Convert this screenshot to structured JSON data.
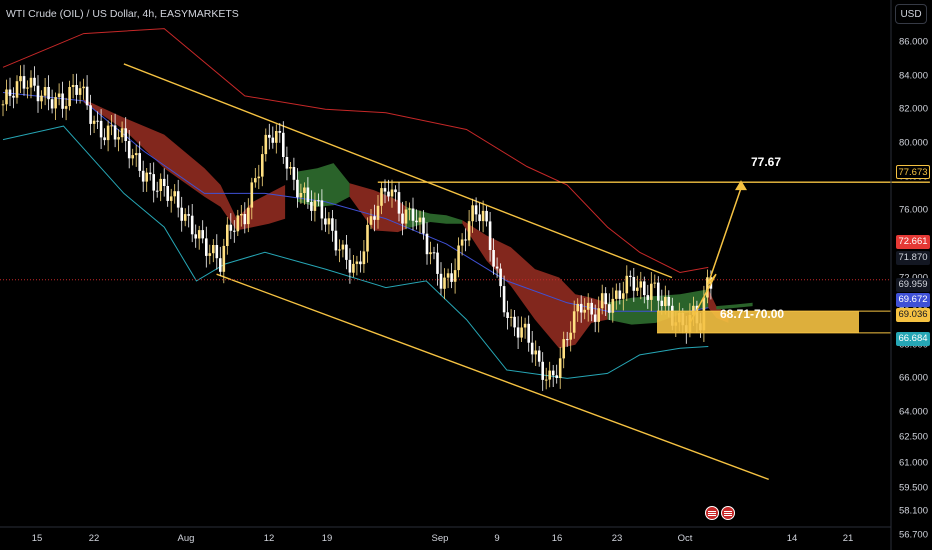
{
  "header": {
    "title": "WTI Crude (OIL) / US Dollar, 4h, EASYMARKETS",
    "currency_button": "USD"
  },
  "colors": {
    "background": "#000000",
    "candle_up": "#ffe082",
    "candle_down": "#ffffff",
    "channel": "#f5c242",
    "upper_band": "#c62828",
    "lower_band": "#26a6b5",
    "ma": "#3f51d6",
    "cloud_bear": "#8d2a1f",
    "cloud_bull": "#2e6b2e",
    "zone": "#f5c242"
  },
  "annotations": {
    "target_label": "77.67",
    "zone_label": "68.71-70.00"
  },
  "icons": {
    "events": [
      "us-flag-icon",
      "us-flag-icon"
    ]
  },
  "chart_data": {
    "type": "candlestick",
    "title": "WTI Crude (OIL) / US Dollar, 4h, EASYMARKETS",
    "xlabel": "",
    "ylabel": "",
    "ylim": [
      55.8,
      88.5
    ],
    "y_ticks": [
      "86.000",
      "84.000",
      "82.000",
      "80.000",
      "78.000",
      "76.000",
      "74.000",
      "72.000",
      "70.000",
      "68.000",
      "66.000",
      "64.000",
      "62.500",
      "61.000",
      "59.500",
      "58.100",
      "56.700"
    ],
    "x_ticks": [
      "15",
      "22",
      "Aug",
      "12",
      "19",
      "Sep",
      "9",
      "16",
      "23",
      "Oct",
      "14",
      "21"
    ],
    "close_path": [
      [
        0,
        82.3
      ],
      [
        6,
        83.6
      ],
      [
        10,
        83.2
      ],
      [
        15,
        82.0
      ],
      [
        19,
        83.5
      ],
      [
        24,
        80.8
      ],
      [
        29,
        80.2
      ],
      [
        34,
        78.8
      ],
      [
        38,
        77.5
      ],
      [
        43,
        76.2
      ],
      [
        48,
        75.0
      ],
      [
        51,
        73.6
      ],
      [
        54,
        72.5
      ],
      [
        56,
        74.8
      ],
      [
        60,
        76.0
      ],
      [
        62,
        77.6
      ],
      [
        66,
        80.2
      ],
      [
        69,
        80.0
      ],
      [
        71,
        78.4
      ],
      [
        76,
        76.6
      ],
      [
        79,
        75.6
      ],
      [
        82,
        74.3
      ],
      [
        85,
        73.5
      ],
      [
        88,
        72.6
      ],
      [
        90,
        74.2
      ],
      [
        93,
        76.1
      ],
      [
        96,
        77.6
      ],
      [
        99,
        76.0
      ],
      [
        102,
        75.8
      ],
      [
        105,
        73.7
      ],
      [
        109,
        71.8
      ],
      [
        111,
        72.3
      ],
      [
        113,
        73.6
      ],
      [
        116,
        75.4
      ],
      [
        119,
        75.6
      ],
      [
        121,
        73.9
      ],
      [
        123,
        72.0
      ],
      [
        126,
        69.3
      ],
      [
        130,
        68.3
      ],
      [
        133,
        66.6
      ],
      [
        136,
        66.2
      ],
      [
        138,
        67.2
      ],
      [
        141,
        69.1
      ],
      [
        144,
        70.2
      ],
      [
        146,
        69.6
      ],
      [
        149,
        71.0
      ],
      [
        151,
        70.6
      ],
      [
        154,
        71.2
      ],
      [
        156,
        71.5
      ],
      [
        159,
        71.0
      ],
      [
        161,
        71.8
      ],
      [
        164,
        70.8
      ],
      [
        166,
        69.5
      ],
      [
        169,
        68.7
      ],
      [
        171,
        69.8
      ],
      [
        173,
        69.5
      ],
      [
        175,
        72.3
      ],
      [
        176,
        72.0
      ]
    ],
    "series": [
      {
        "name": "",
        "style": "upper-band",
        "values": [
          [
            0,
            84.5
          ],
          [
            20,
            86.5
          ],
          [
            40,
            86.8
          ],
          [
            60,
            82.8
          ],
          [
            80,
            82.0
          ],
          [
            95,
            81.8
          ],
          [
            115,
            80.8
          ],
          [
            130,
            78.6
          ],
          [
            140,
            77.5
          ],
          [
            150,
            75.0
          ],
          [
            158,
            73.5
          ],
          [
            168,
            72.3
          ],
          [
            175,
            72.6
          ]
        ]
      },
      {
        "name": "",
        "style": "lower-band",
        "values": [
          [
            0,
            80.2
          ],
          [
            15,
            81.0
          ],
          [
            30,
            77.0
          ],
          [
            40,
            75.0
          ],
          [
            48,
            71.8
          ],
          [
            55,
            72.8
          ],
          [
            65,
            73.5
          ],
          [
            80,
            72.5
          ],
          [
            95,
            71.4
          ],
          [
            105,
            71.8
          ],
          [
            115,
            69.5
          ],
          [
            125,
            66.5
          ],
          [
            140,
            66.0
          ],
          [
            150,
            66.3
          ],
          [
            158,
            67.4
          ],
          [
            168,
            67.8
          ],
          [
            175,
            67.9
          ]
        ]
      },
      {
        "name": "",
        "style": "moving-average",
        "values": [
          [
            0,
            83.0
          ],
          [
            20,
            82.5
          ],
          [
            35,
            79.5
          ],
          [
            50,
            77.0
          ],
          [
            65,
            77.0
          ],
          [
            80,
            76.5
          ],
          [
            95,
            75.5
          ],
          [
            110,
            74.0
          ],
          [
            125,
            71.8
          ],
          [
            140,
            70.5
          ],
          [
            150,
            70.0
          ],
          [
            160,
            70.0
          ],
          [
            170,
            70.0
          ],
          [
            175,
            70.2
          ]
        ]
      }
    ],
    "clouds": [
      {
        "type": "bearish",
        "top": [
          [
            20,
            82.6
          ],
          [
            30,
            81.5
          ],
          [
            40,
            80.5
          ],
          [
            50,
            78.5
          ],
          [
            54,
            77.5
          ],
          [
            58,
            75.5
          ],
          [
            62,
            76.5
          ],
          [
            66,
            77.0
          ],
          [
            70,
            77.5
          ]
        ],
        "bottom": [
          [
            20,
            82.4
          ],
          [
            30,
            80.8
          ],
          [
            40,
            78.5
          ],
          [
            50,
            76.8
          ],
          [
            54,
            76.2
          ],
          [
            58,
            74.8
          ],
          [
            62,
            75.0
          ],
          [
            66,
            75.2
          ],
          [
            70,
            75.5
          ]
        ]
      },
      {
        "type": "bullish",
        "top": [
          [
            73,
            78.3
          ],
          [
            78,
            78.5
          ],
          [
            82,
            78.8
          ],
          [
            86,
            77.6
          ]
        ],
        "bottom": [
          [
            73,
            76.5
          ],
          [
            78,
            76.2
          ],
          [
            82,
            76.3
          ],
          [
            86,
            76.8
          ]
        ]
      },
      {
        "type": "bearish",
        "top": [
          [
            86,
            77.6
          ],
          [
            92,
            77.2
          ],
          [
            98,
            76.6
          ],
          [
            100,
            76.2
          ]
        ],
        "bottom": [
          [
            86,
            76.8
          ],
          [
            92,
            74.8
          ],
          [
            98,
            74.7
          ],
          [
            100,
            74.9
          ]
        ]
      },
      {
        "type": "bullish",
        "top": [
          [
            100,
            76.2
          ],
          [
            106,
            75.8
          ],
          [
            110,
            75.7
          ],
          [
            114,
            75.4
          ]
        ],
        "bottom": [
          [
            100,
            74.9
          ],
          [
            106,
            75.3
          ],
          [
            110,
            75.2
          ],
          [
            114,
            75.2
          ]
        ]
      },
      {
        "type": "bearish",
        "top": [
          [
            114,
            75.4
          ],
          [
            120,
            74.5
          ],
          [
            126,
            73.8
          ],
          [
            132,
            72.5
          ],
          [
            138,
            72.0
          ],
          [
            142,
            71.0
          ],
          [
            146,
            70.8
          ],
          [
            150,
            70.5
          ]
        ],
        "bottom": [
          [
            114,
            75.2
          ],
          [
            120,
            73.0
          ],
          [
            126,
            71.5
          ],
          [
            132,
            69.5
          ],
          [
            138,
            67.8
          ],
          [
            142,
            68.0
          ],
          [
            146,
            69.3
          ],
          [
            150,
            69.5
          ]
        ]
      },
      {
        "type": "bullish",
        "top": [
          [
            150,
            70.5
          ],
          [
            156,
            70.8
          ],
          [
            162,
            70.9
          ],
          [
            168,
            71.0
          ],
          [
            175,
            71.3
          ]
        ],
        "bottom": [
          [
            150,
            69.5
          ],
          [
            156,
            69.2
          ],
          [
            162,
            69.3
          ],
          [
            168,
            69.8
          ],
          [
            175,
            70.2
          ]
        ]
      },
      {
        "type": "bearish",
        "top": [
          [
            175,
            71.3
          ],
          [
            177,
            70.3
          ],
          [
            180,
            69.8
          ]
        ],
        "bottom": [
          [
            175,
            70.2
          ],
          [
            177,
            69.6
          ],
          [
            180,
            69.3
          ]
        ]
      },
      {
        "type": "bullish",
        "top": [
          [
            177,
            70.3
          ],
          [
            182,
            70.4
          ],
          [
            186,
            70.5
          ]
        ],
        "bottom": [
          [
            177,
            70.1
          ],
          [
            182,
            70.2
          ],
          [
            186,
            70.3
          ]
        ]
      }
    ],
    "trendlines": [
      {
        "role": "channel-upper",
        "from": [
          30,
          84.7
        ],
        "to": [
          166,
          72.0
        ]
      },
      {
        "role": "channel-lower",
        "from": [
          53,
          72.2
        ],
        "to": [
          190,
          60.0
        ]
      },
      {
        "role": "horizontal",
        "from": [
          93,
          77.67
        ],
        "to": [
          230,
          77.67
        ]
      }
    ],
    "target": {
      "label": "77.67",
      "price": 77.67
    },
    "zone": {
      "label": "68.71-70.00",
      "from_price": 68.71,
      "to_price": 70.0
    },
    "price_badges": [
      {
        "value": "77.673",
        "kind": "outline"
      },
      {
        "value": "72.661",
        "kind": "red"
      },
      {
        "value": "71.870",
        "kind": "dark"
      },
      {
        "value": "69.959",
        "kind": "dark"
      },
      {
        "value": "69.672",
        "kind": "blue"
      },
      {
        "value": "69.036",
        "kind": "yellow"
      },
      {
        "value": "66.684",
        "kind": "teal"
      }
    ],
    "grid": false,
    "legend": "none"
  }
}
